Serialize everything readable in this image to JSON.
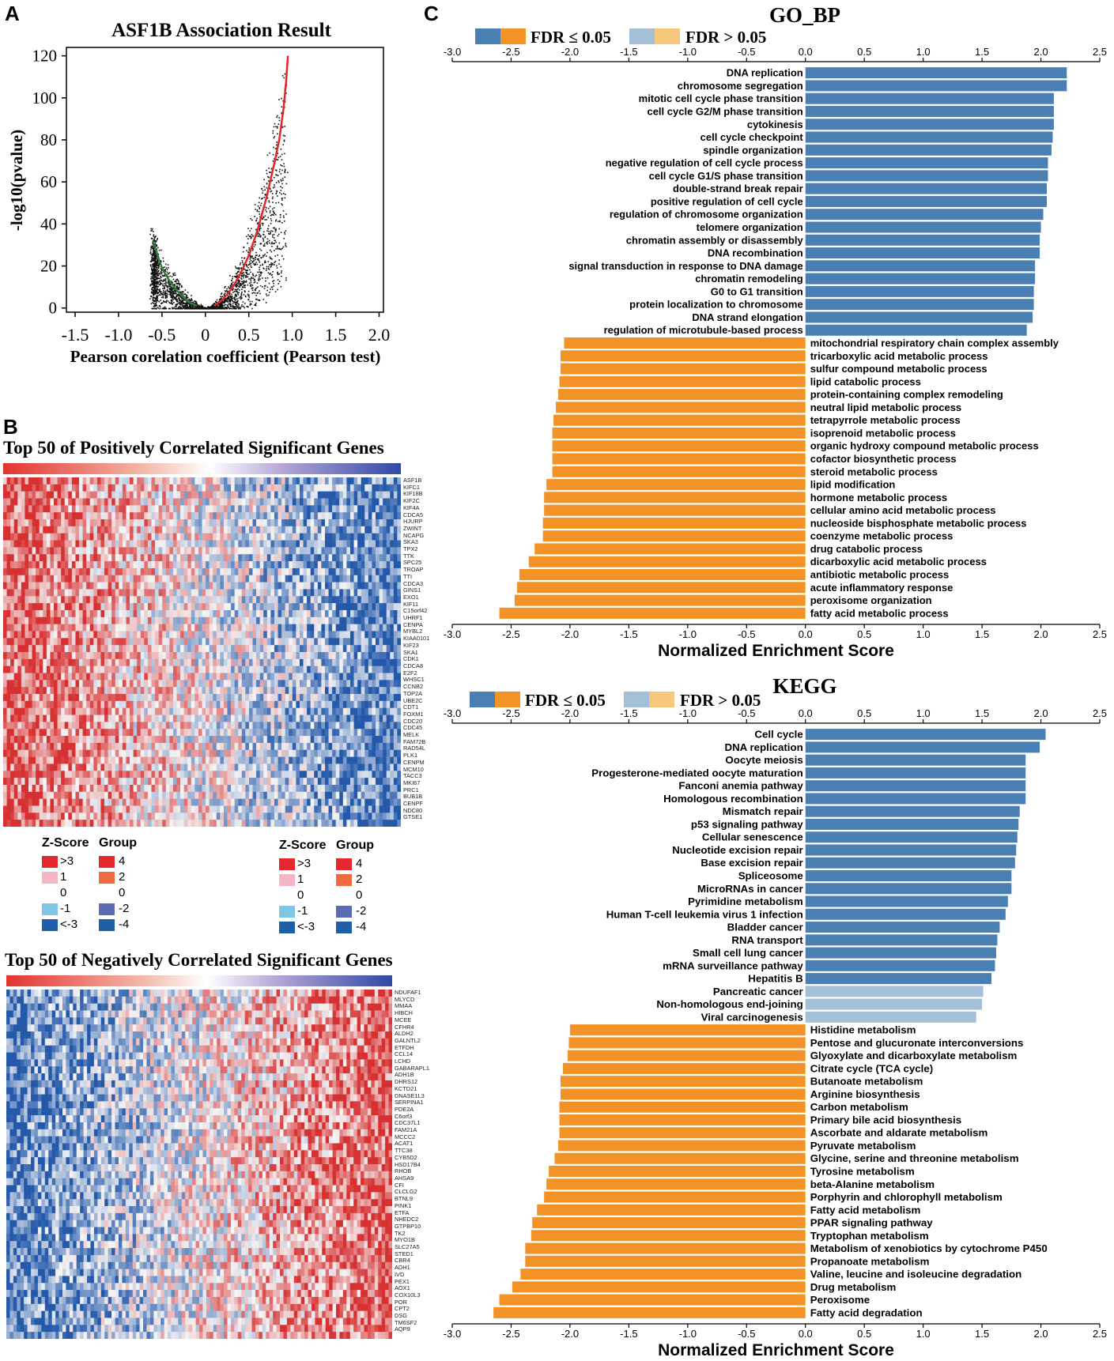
{
  "panels": {
    "a": "A",
    "b": "B",
    "c": "C"
  },
  "colors": {
    "sig_pos": "#4a7fb4",
    "sig_neg": "#f39327",
    "nonsig_pos": "#a4bfd8",
    "nonsig_neg": "#f7c77c",
    "volcano_pos": "#e0282a",
    "volcano_neg": "#2f7d3a",
    "heat_high": "#e3342f",
    "heat_mid": "#f5f5f5",
    "heat_low": "#2e63b8"
  },
  "chart_data": [
    {
      "id": "volcano",
      "type": "scatter",
      "title": "ASF1B Association  Result",
      "xlabel": "Pearson corelation coefficient (Pearson test)",
      "ylabel": "-log10(pvalue)",
      "xlim": [
        -1.6,
        2.05
      ],
      "ylim": [
        -2,
        124
      ],
      "x_ticks": [
        -1.5,
        -1.0,
        -0.5,
        0,
        0.5,
        1.0,
        1.5,
        2.0
      ],
      "x_tick_labels": [
        "-1.5",
        "-1.0",
        "-0.5",
        "0",
        "0.5",
        "1.0",
        "1.5",
        "2.0"
      ],
      "y_ticks": [
        0,
        20,
        40,
        60,
        80,
        100,
        120
      ],
      "y_tick_labels": [
        "0",
        "20",
        "40",
        "60",
        "80",
        "100",
        "120"
      ],
      "series": [
        {
          "name": "positive",
          "x": [
            0.1,
            0.2,
            0.3,
            0.4,
            0.5,
            0.6,
            0.7,
            0.8,
            0.85,
            0.9,
            0.93,
            0.95
          ],
          "y": [
            1,
            4,
            9,
            16,
            25,
            37,
            52,
            70,
            80,
            95,
            108,
            120
          ]
        },
        {
          "name": "negative",
          "x": [
            -0.1,
            -0.2,
            -0.3,
            -0.4,
            -0.5,
            -0.55,
            -0.6
          ],
          "y": [
            1,
            3,
            7,
            12,
            19,
            25,
            32
          ]
        }
      ]
    },
    {
      "id": "go_bp",
      "type": "bar",
      "orientation": "horizontal",
      "title": "GO_BP",
      "xlabel": "Normalized Enrichment Score",
      "xlim": [
        -3.0,
        2.5
      ],
      "x_ticks": [
        -3.0,
        -2.5,
        -2.0,
        -1.5,
        -1.0,
        -0.5,
        0.0,
        0.5,
        1.0,
        1.5,
        2.0,
        2.5
      ],
      "x_tick_labels": [
        "-3.0",
        "-2.5",
        "-2.0",
        "-1.5",
        "-1.0",
        "-0.5",
        "0.0",
        "0.5",
        "1.0",
        "1.5",
        "2.0",
        "2.5"
      ],
      "legend": {
        "sig": "FDR ≤ 0.05",
        "nonsig": "FDR > 0.05"
      },
      "categories": [
        "DNA replication",
        "chromosome segregation",
        "mitotic cell cycle phase transition",
        "cell cycle G2/M phase transition",
        "cytokinesis",
        "cell cycle checkpoint",
        "spindle organization",
        "negative regulation of cell cycle process",
        "cell cycle G1/S phase transition",
        "double-strand break repair",
        "positive regulation of cell cycle",
        "regulation of chromosome organization",
        "telomere organization",
        "chromatin assembly or disassembly",
        "DNA recombination",
        "signal transduction in response to DNA damage",
        "chromatin remodeling",
        "G0 to G1 transition",
        "protein localization to chromosome",
        "DNA strand elongation",
        "regulation of microtubule-based process",
        "mitochondrial respiratory chain complex assembly",
        "tricarboxylic acid metabolic process",
        "sulfur compound metabolic process",
        "lipid catabolic process",
        "protein-containing complex remodeling",
        "neutral lipid metabolic process",
        "tetrapyrrole metabolic process",
        "isoprenoid metabolic process",
        "organic hydroxy compound metabolic process",
        "cofactor biosynthetic process",
        "steroid metabolic process",
        "lipid modification",
        "hormone metabolic process",
        "cellular amino acid metabolic process",
        "nucleoside bisphosphate metabolic process",
        "coenzyme metabolic process",
        "drug catabolic process",
        "dicarboxylic acid metabolic process",
        "antibiotic metabolic process",
        "acute inflammatory response",
        "peroxisome organization",
        "fatty acid metabolic process"
      ],
      "values": [
        2.22,
        2.22,
        2.11,
        2.11,
        2.11,
        2.1,
        2.09,
        2.06,
        2.06,
        2.05,
        2.05,
        2.02,
        2.0,
        1.99,
        1.99,
        1.95,
        1.95,
        1.94,
        1.94,
        1.93,
        1.88,
        -2.05,
        -2.08,
        -2.08,
        -2.09,
        -2.1,
        -2.12,
        -2.14,
        -2.15,
        -2.15,
        -2.15,
        -2.15,
        -2.2,
        -2.22,
        -2.22,
        -2.23,
        -2.23,
        -2.3,
        -2.35,
        -2.43,
        -2.45,
        -2.47,
        -2.6
      ],
      "significant": [
        true,
        true,
        true,
        true,
        true,
        true,
        true,
        true,
        true,
        true,
        true,
        true,
        true,
        true,
        true,
        true,
        true,
        true,
        true,
        true,
        true,
        true,
        true,
        true,
        true,
        true,
        true,
        true,
        true,
        true,
        true,
        true,
        true,
        true,
        true,
        true,
        true,
        true,
        true,
        true,
        true,
        true,
        true
      ]
    },
    {
      "id": "kegg",
      "type": "bar",
      "orientation": "horizontal",
      "title": "KEGG",
      "xlabel": "Normalized Enrichment Score",
      "xlim": [
        -3.0,
        2.5
      ],
      "x_ticks": [
        -3.0,
        -2.5,
        -2.0,
        -1.5,
        -1.0,
        -0.5,
        0.0,
        0.5,
        1.0,
        1.5,
        2.0,
        2.5
      ],
      "x_tick_labels": [
        "-3.0",
        "-2.5",
        "-2.0",
        "-1.5",
        "-1.0",
        "-0.5",
        "0.0",
        "0.5",
        "1.0",
        "1.5",
        "2.0",
        "2.5"
      ],
      "legend": {
        "sig": "FDR ≤ 0.05",
        "nonsig": "FDR > 0.05"
      },
      "categories": [
        "Cell cycle",
        "DNA replication",
        "Oocyte meiosis",
        "Progesterone-mediated oocyte maturation",
        "Fanconi anemia pathway",
        "Homologous recombination",
        "Mismatch repair",
        "p53 signaling pathway",
        "Cellular senescence",
        "Nucleotide excision repair",
        "Base excision repair",
        "Spliceosome",
        "MicroRNAs in cancer",
        "Pyrimidine metabolism",
        "Human T-cell leukemia virus 1 infection",
        "Bladder cancer",
        "RNA transport",
        "Small cell lung cancer",
        "mRNA surveillance pathway",
        "Hepatitis B",
        "Pancreatic cancer",
        "Non-homologous end-joining",
        "Viral carcinogenesis",
        "Histidine metabolism",
        "Pentose and glucuronate interconversions",
        "Glyoxylate and dicarboxylate metabolism",
        "Citrate cycle (TCA cycle)",
        "Butanoate metabolism",
        "Arginine biosynthesis",
        "Carbon metabolism",
        "Primary bile acid biosynthesis",
        "Ascorbate and aldarate metabolism",
        "Pyruvate metabolism",
        "Glycine, serine and threonine metabolism",
        "Tyrosine metabolism",
        "beta-Alanine metabolism",
        "Porphyrin and chlorophyll metabolism",
        "Fatty acid metabolism",
        "PPAR signaling pathway",
        "Tryptophan metabolism",
        "Metabolism of xenobiotics by cytochrome P450",
        "Propanoate metabolism",
        "Valine, leucine and isoleucine degradation",
        "Drug metabolism",
        "Peroxisome",
        "Fatty acid degradation"
      ],
      "values": [
        2.04,
        1.99,
        1.87,
        1.87,
        1.87,
        1.87,
        1.82,
        1.81,
        1.8,
        1.79,
        1.78,
        1.75,
        1.75,
        1.72,
        1.7,
        1.65,
        1.63,
        1.62,
        1.61,
        1.58,
        1.51,
        1.5,
        1.45,
        -2.0,
        -2.01,
        -2.02,
        -2.06,
        -2.08,
        -2.08,
        -2.09,
        -2.09,
        -2.09,
        -2.1,
        -2.13,
        -2.18,
        -2.2,
        -2.22,
        -2.28,
        -2.32,
        -2.33,
        -2.38,
        -2.38,
        -2.42,
        -2.49,
        -2.6,
        -2.65
      ],
      "significant": [
        true,
        true,
        true,
        true,
        true,
        true,
        true,
        true,
        true,
        true,
        true,
        true,
        true,
        true,
        true,
        true,
        true,
        true,
        true,
        true,
        false,
        false,
        false,
        true,
        true,
        true,
        true,
        true,
        true,
        true,
        true,
        true,
        true,
        true,
        true,
        true,
        true,
        true,
        true,
        true,
        true,
        true,
        true,
        true,
        true,
        true
      ]
    },
    {
      "id": "heatmap_pos",
      "type": "heatmap",
      "title": "Top 50 of Positively Correlated Significant Genes",
      "rows": [
        "ASF1B",
        "KIFC1",
        "KIF18B",
        "KIF2C",
        "KIF4A",
        "CDCA5",
        "HJURP",
        "ZWINT",
        "NCAPG",
        "SKA3",
        "TPX2",
        "TTK",
        "SPC25",
        "TROAP",
        "TTI",
        "CDCA3",
        "GINS1",
        "EXO1",
        "KIF11",
        "C15orf42",
        "UHRF1",
        "CENPA",
        "MYBL2",
        "KIAA0101",
        "KIF23",
        "SKA1",
        "CDK1",
        "CDCA8",
        "E2F2",
        "WHSC1",
        "CCNB2",
        "TOP2A",
        "UBE2C",
        "CDT1",
        "FOXM1",
        "CDC20",
        "CDC45",
        "MELK",
        "FAM72B",
        "RAD54L",
        "PLK1",
        "CENPM",
        "MCM10",
        "TACC3",
        "MKI67",
        "PRC1",
        "BUB1B",
        "CENPF",
        "NDC80",
        "GTSE1"
      ],
      "trend": "high-to-low"
    },
    {
      "id": "heatmap_neg",
      "type": "heatmap",
      "title": "Top 50 of Negatively Correlated Significant Genes",
      "rows": [
        "NDUFAF1",
        "MLYCD",
        "MMAA",
        "HIBCH",
        "MCEE",
        "CFHR4",
        "ALDH2",
        "GALNTL2",
        "ETFDH",
        "CCL14",
        "LCHD",
        "GABARAPL1",
        "ADH1B",
        "DHRS12",
        "KCTD21",
        "DNASE1L3",
        "SERPINA1",
        "PDE2A",
        "C6orf3",
        "CDC37L1",
        "FAM21A",
        "MCCC2",
        "ACAT1",
        "TTC38",
        "CYB5D2",
        "HSD17B4",
        "RHOB",
        "AHSA9",
        "CFI",
        "CLCLG2",
        "BTNL9",
        "PINK1",
        "ETFA",
        "NHEDC2",
        "GTPBP10",
        "TK2",
        "MYO1B",
        "SLC27A5",
        "STED1",
        "CBR4",
        "ADH1",
        "IVD",
        "PEX1",
        "AOX1",
        "COX10L3",
        "POR",
        "CPT2",
        "DSG",
        "TM6SF2",
        "AQP9"
      ],
      "trend": "low-to-high"
    }
  ],
  "heatmap_legend": {
    "zscore_title": "Z-Score",
    "group_title": "Group",
    "zscore_labels": [
      ">3",
      "1",
      "0",
      "-1",
      "<-3"
    ],
    "group_labels": [
      "4",
      "2",
      "0",
      "-2",
      "-4"
    ]
  }
}
